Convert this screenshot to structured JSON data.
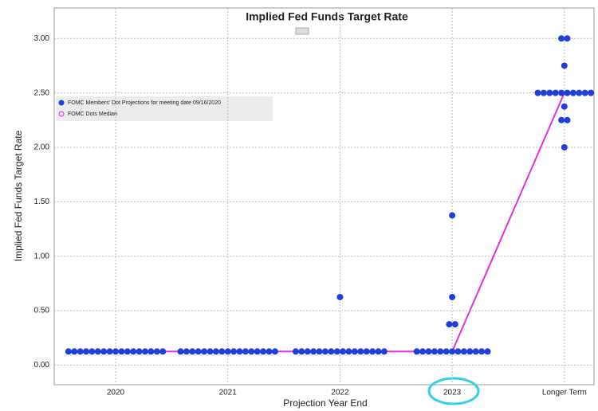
{
  "chart_data": {
    "type": "dot_plot",
    "title": "Implied Fed Funds Target Rate",
    "y_label": "Implied Fed Funds Target Rate",
    "x_label": "Projection Year End",
    "categories": [
      "2020",
      "2021",
      "2022",
      "2023",
      "Longer Term"
    ],
    "series": [
      {
        "name": "FOMC Members' Dot Projections for meeting date 09/16/2020",
        "color": "#1f3fd8",
        "values": [
          [
            0.125,
            0.125,
            0.125,
            0.125,
            0.125,
            0.125,
            0.125,
            0.125,
            0.125,
            0.125,
            0.125,
            0.125,
            0.125,
            0.125,
            0.125,
            0.125,
            0.125
          ],
          [
            0.125,
            0.125,
            0.125,
            0.125,
            0.125,
            0.125,
            0.125,
            0.125,
            0.125,
            0.125,
            0.125,
            0.125,
            0.125,
            0.125,
            0.125,
            0.125,
            0.125
          ],
          [
            0.125,
            0.125,
            0.125,
            0.125,
            0.125,
            0.125,
            0.125,
            0.125,
            0.125,
            0.125,
            0.125,
            0.125,
            0.125,
            0.125,
            0.125,
            0.125,
            0.625
          ],
          [
            0.125,
            0.125,
            0.125,
            0.125,
            0.125,
            0.125,
            0.125,
            0.125,
            0.125,
            0.125,
            0.125,
            0.125,
            0.125,
            0.375,
            0.375,
            0.625,
            1.375
          ],
          [
            2.0,
            2.25,
            2.25,
            2.375,
            2.5,
            2.5,
            2.5,
            2.5,
            2.5,
            2.5,
            2.5,
            2.5,
            2.5,
            2.5,
            2.75,
            3.0,
            3.0
          ]
        ]
      },
      {
        "name": "FOMC Dots Median",
        "color": "#e030e0",
        "values": [
          0.125,
          0.125,
          0.125,
          0.125,
          2.5
        ]
      }
    ],
    "ylim": [
      -0.18,
      3.28
    ],
    "yticks": [
      {
        "value": 0,
        "label": "0.00"
      },
      {
        "value": 0.5,
        "label": "0.50"
      },
      {
        "value": 1,
        "label": "1.00"
      },
      {
        "value": 1.5,
        "label": "1.50"
      },
      {
        "value": 2,
        "label": "2.00"
      },
      {
        "value": 2.5,
        "label": "2.50"
      },
      {
        "value": 3,
        "label": "3.00"
      }
    ],
    "grid": true
  }
}
